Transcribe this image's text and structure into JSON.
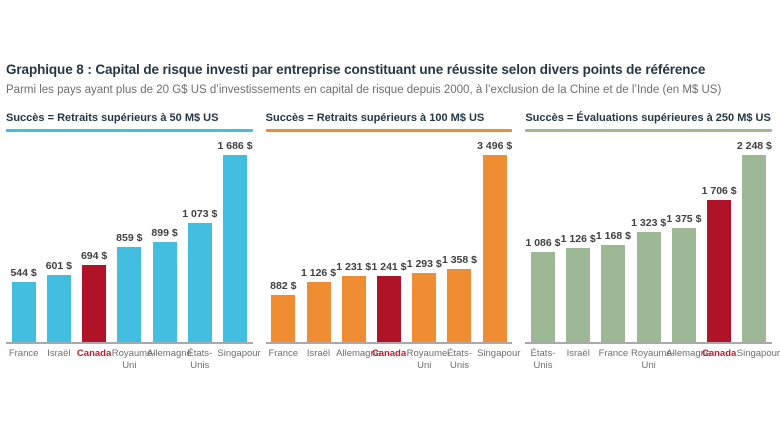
{
  "header": {
    "title": "Graphique 8 : Capital de risque investi par entreprise constituant une réussite selon divers points de référence",
    "subtitle": "Parmi les pays ayant plus de 20 G$ US d’investissements en capital de risque depuis 2000, à l’exclusion de la Chine et de l’Inde (en M$ US)"
  },
  "colors": {
    "title_text": "#253746",
    "subtitle_text": "#6D6E71",
    "value_label_text": "#414042",
    "category_label_text": "#6D6E71",
    "canada_bar": "#B01228",
    "canada_label": "#C01A2E",
    "axis_line": "#A7A9AC",
    "cyan": "#41BEE0",
    "orange": "#F08C32",
    "green": "#9CB894"
  },
  "chart_data": [
    {
      "type": "bar",
      "title": "Succès = Retraits supérieurs à 50 M$ US",
      "categories": [
        "France",
        "Israël",
        "Canada",
        "Royaume-Uni",
        "Allemagne",
        "États-Unis",
        "Singapour"
      ],
      "values": [
        544,
        601,
        694,
        859,
        899,
        1073,
        1686
      ],
      "value_labels": [
        "544 $",
        "601 $",
        "694 $",
        "859 $",
        "899 $",
        "1 073 $",
        "1 686 $"
      ],
      "bar_color": "#41BEE0",
      "highlight_category": "Canada",
      "xlabel": "",
      "ylabel": "",
      "ylim": [
        0,
        1700
      ],
      "grid": false,
      "legend": "none"
    },
    {
      "type": "bar",
      "title": "Succès = Retraits supérieurs à 100 M$ US",
      "categories": [
        "France",
        "Israël",
        "Allemagne",
        "Canada",
        "Royaume-Uni",
        "États-Unis",
        "Singapour"
      ],
      "values": [
        882,
        1126,
        1231,
        1241,
        1293,
        1358,
        3496
      ],
      "value_labels": [
        "882 $",
        "1 126 $",
        "1 231 $",
        "1 241 $",
        "1 293 $",
        "1 358 $",
        "3 496 $"
      ],
      "bar_color": "#F08C32",
      "highlight_category": "Canada",
      "xlabel": "",
      "ylabel": "",
      "ylim": [
        0,
        3500
      ],
      "grid": false,
      "legend": "none"
    },
    {
      "type": "bar",
      "title": "Succès = Évaluations supérieures à 250 M$ US",
      "categories": [
        "États-Unis",
        "Israël",
        "France",
        "Royaume-Uni",
        "Allemagne",
        "Canada",
        "Singapour"
      ],
      "values": [
        1086,
        1126,
        1168,
        1323,
        1375,
        1706,
        2248
      ],
      "value_labels": [
        "1 086 $",
        "1 126 $",
        "1 168 $",
        "1 323 $",
        "1 375 $",
        "1 706 $",
        "2 248 $"
      ],
      "bar_color": "#9CB894",
      "highlight_category": "Canada",
      "xlabel": "",
      "ylabel": "",
      "ylim": [
        0,
        2300
      ],
      "grid": false,
      "legend": "none"
    }
  ]
}
